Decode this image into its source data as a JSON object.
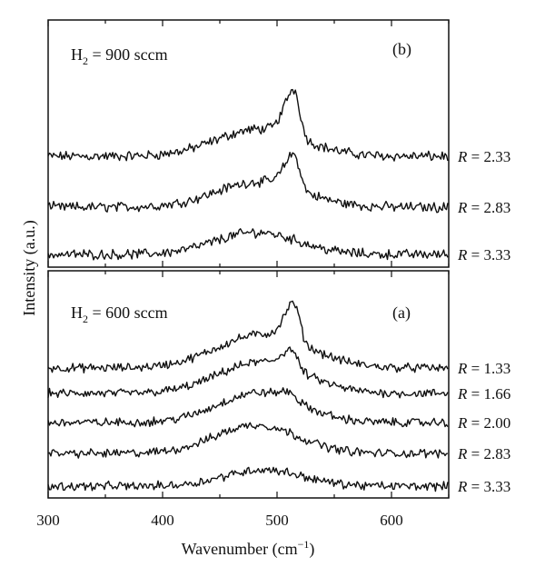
{
  "chart_data": {
    "type": "line",
    "xlabel_main": "Wavenumber (cm",
    "xlabel_exp": "−1",
    "xlabel_close": ")",
    "ylabel": "Intensity (a.u.)",
    "xlim": [
      300,
      650
    ],
    "xticks": [
      "300",
      "400",
      "500",
      "600"
    ],
    "panels": [
      {
        "id": "b",
        "tag": "(b)",
        "condition_prefix": "H",
        "condition_sub": "2",
        "condition_rest": " = 900 sccm",
        "series": [
          {
            "name": "R = 2.33",
            "R": "2.33",
            "baseline": 0.0,
            "peak_center": 515,
            "peak_height": 0.55,
            "peak_width": 6,
            "broad_center": 485,
            "broad_height": 0.32,
            "broad_width": 38
          },
          {
            "name": "R = 2.83",
            "R": "2.83",
            "baseline": 0.0,
            "peak_center": 515,
            "peak_height": 0.4,
            "peak_width": 6,
            "broad_center": 485,
            "broad_height": 0.3,
            "broad_width": 38
          },
          {
            "name": "R = 3.33",
            "R": "3.33",
            "baseline": 0.0,
            "peak_center": 515,
            "peak_height": 0.0,
            "peak_width": 6,
            "broad_center": 482,
            "broad_height": 0.26,
            "broad_width": 36
          }
        ]
      },
      {
        "id": "a",
        "tag": "(a)",
        "condition_prefix": "H",
        "condition_sub": "2",
        "condition_rest": " = 600 sccm",
        "series": [
          {
            "name": "R = 1.33",
            "R": "1.33",
            "baseline": 0.0,
            "peak_center": 515,
            "peak_height": 0.5,
            "peak_width": 6,
            "broad_center": 488,
            "broad_height": 0.45,
            "broad_width": 40
          },
          {
            "name": "R = 1.66",
            "R": "1.66",
            "baseline": 0.0,
            "peak_center": 513,
            "peak_height": 0.25,
            "peak_width": 6,
            "broad_center": 487,
            "broad_height": 0.42,
            "broad_width": 38
          },
          {
            "name": "R = 2.00",
            "R": "2.00",
            "baseline": 0.0,
            "peak_center": 512,
            "peak_height": 0.1,
            "peak_width": 6,
            "broad_center": 485,
            "broad_height": 0.4,
            "broad_width": 36
          },
          {
            "name": "R = 2.83",
            "R": "2.83",
            "baseline": 0.0,
            "peak_center": 512,
            "peak_height": 0.0,
            "peak_width": 6,
            "broad_center": 482,
            "broad_height": 0.38,
            "broad_width": 36
          },
          {
            "name": "R = 3.33",
            "R": "3.33",
            "baseline": 0.0,
            "peak_center": 512,
            "peak_height": 0.0,
            "peak_width": 6,
            "broad_center": 488,
            "broad_height": 0.22,
            "broad_width": 34
          }
        ]
      }
    ],
    "grid": false,
    "legend": "right of each trace"
  }
}
